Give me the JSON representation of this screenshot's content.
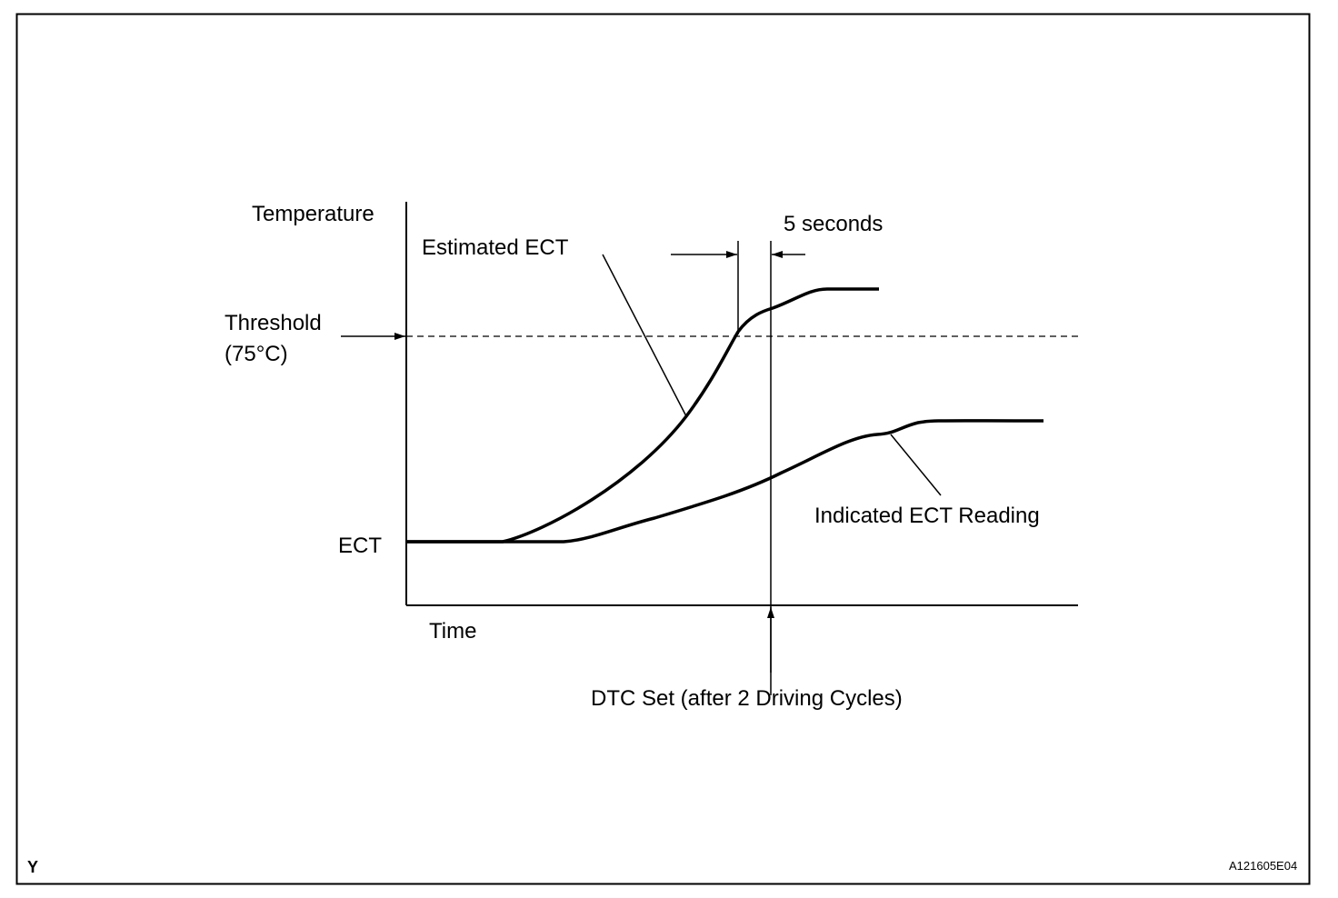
{
  "diagram": {
    "y_axis_label": "Temperature",
    "x_axis_label": "Time",
    "baseline_label": "ECT",
    "threshold_label": "Threshold",
    "threshold_value": "(75°C)",
    "estimated_label": "Estimated ECT",
    "indicated_label": "Indicated ECT Reading",
    "interval_label": "5 seconds",
    "dtc_label": "DTC Set (after 2 Driving Cycles)"
  },
  "footer": {
    "corner_mark": "Y",
    "figure_code": "A121605E04"
  }
}
